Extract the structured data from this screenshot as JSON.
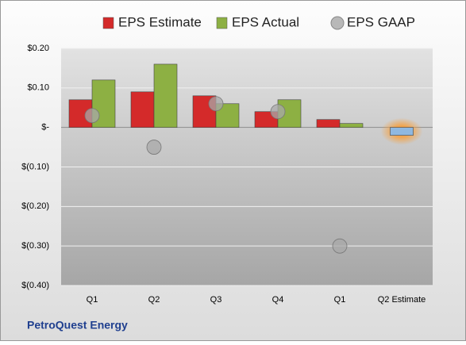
{
  "chart_data": {
    "type": "bar",
    "footer": "PetroQuest Energy",
    "categories": [
      "Q1",
      "Q2",
      "Q3",
      "Q4",
      "Q1",
      "Q2 Estimate"
    ],
    "series": [
      {
        "name": "EPS Estimate",
        "color": "#d42a2a",
        "values": [
          0.07,
          0.09,
          0.08,
          0.04,
          0.02,
          -0.02
        ]
      },
      {
        "name": "EPS Actual",
        "color": "#8db043",
        "values": [
          0.12,
          0.16,
          0.06,
          0.07,
          0.01,
          null
        ]
      },
      {
        "name": "EPS GAAP",
        "color": "#a8a8a8",
        "marker": "circle",
        "values": [
          0.03,
          -0.05,
          0.06,
          0.04,
          -0.3,
          null
        ]
      }
    ],
    "highlight": {
      "category_index": 5,
      "color": "#8fb8e0",
      "glow": "#f5a040"
    },
    "ylim": [
      -0.4,
      0.2
    ],
    "yticks": [
      {
        "value": -0.4,
        "label": "$(0.40)"
      },
      {
        "value": -0.3,
        "label": "$(0.30)"
      },
      {
        "value": -0.2,
        "label": "$(0.20)"
      },
      {
        "value": -0.1,
        "label": "$(0.10)"
      },
      {
        "value": 0,
        "label": "$-"
      },
      {
        "value": 0.1,
        "label": "$0.10"
      },
      {
        "value": 0.2,
        "label": "$0.20"
      }
    ],
    "grid": true
  }
}
